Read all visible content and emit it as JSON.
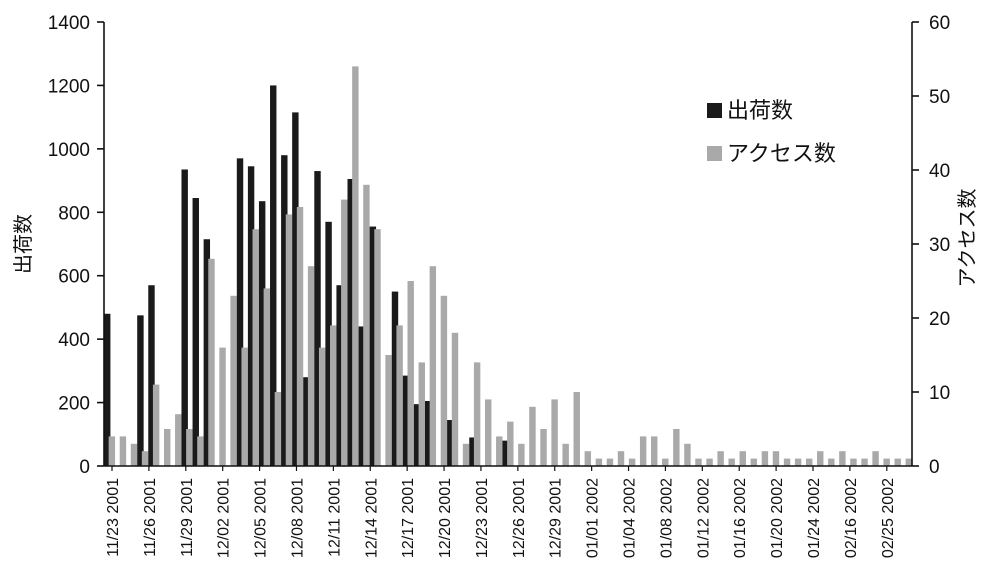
{
  "chart_data": {
    "type": "bar",
    "title": "",
    "xlabel": "",
    "ylabel": "出荷数",
    "y2label": "アクセス数",
    "ylim": [
      0,
      1400
    ],
    "y2lim": [
      0,
      60
    ],
    "yticks": [
      0,
      200,
      400,
      600,
      800,
      1000,
      1200,
      1400
    ],
    "y2ticks": [
      0,
      10,
      20,
      30,
      40,
      50,
      60
    ],
    "legend_placement": "top-right",
    "grid": false,
    "colors": {
      "shipments": "#1a1a1a",
      "access": "#a9a9a9"
    },
    "xtick_labels": [
      "11/23 2001",
      "11/26 2001",
      "11/29 2001",
      "12/02 2001",
      "12/05 2001",
      "12/08 2001",
      "12/11 2001",
      "12/14 2001",
      "12/17 2001",
      "12/20 2001",
      "12/23 2001",
      "12/26 2001",
      "12/29 2001",
      "01/01 2002",
      "01/04 2002",
      "01/08 2002",
      "01/12 2002",
      "01/16 2002",
      "01/20 2002",
      "01/24 2002",
      "02/16 2002",
      "02/25 2002"
    ],
    "series": [
      {
        "name": "出荷数",
        "axis": "left",
        "values": [
          480,
          0,
          0,
          475,
          570,
          0,
          0,
          935,
          845,
          715,
          0,
          0,
          970,
          945,
          835,
          1200,
          980,
          1115,
          280,
          930,
          770,
          570,
          905,
          440,
          755,
          0,
          550,
          285,
          195,
          205,
          0,
          145,
          0,
          90,
          0,
          0,
          80,
          0,
          0,
          0,
          0,
          0,
          0,
          0,
          0,
          0,
          0,
          0,
          0,
          0,
          0,
          0,
          0,
          0,
          0,
          0,
          0,
          0,
          0,
          0,
          0,
          0,
          0,
          0,
          0,
          0,
          0,
          0,
          0,
          0,
          0,
          0,
          0
        ]
      },
      {
        "name": "アクセス数",
        "axis": "right",
        "values": [
          4,
          4,
          3,
          2,
          11,
          5,
          7,
          5,
          4,
          28,
          16,
          23,
          16,
          32,
          24,
          10,
          34,
          35,
          27,
          16,
          19,
          36,
          54,
          38,
          32,
          15,
          19,
          25,
          14,
          27,
          23,
          18,
          3,
          14,
          9,
          4,
          6,
          3,
          8,
          5,
          9,
          3,
          10,
          2,
          1,
          1,
          2,
          1,
          4,
          4,
          1,
          5,
          3,
          1,
          1,
          2,
          1,
          2,
          1,
          2,
          2,
          1,
          1,
          1,
          2,
          1,
          2,
          1,
          1,
          2,
          1,
          1,
          1
        ]
      }
    ]
  }
}
